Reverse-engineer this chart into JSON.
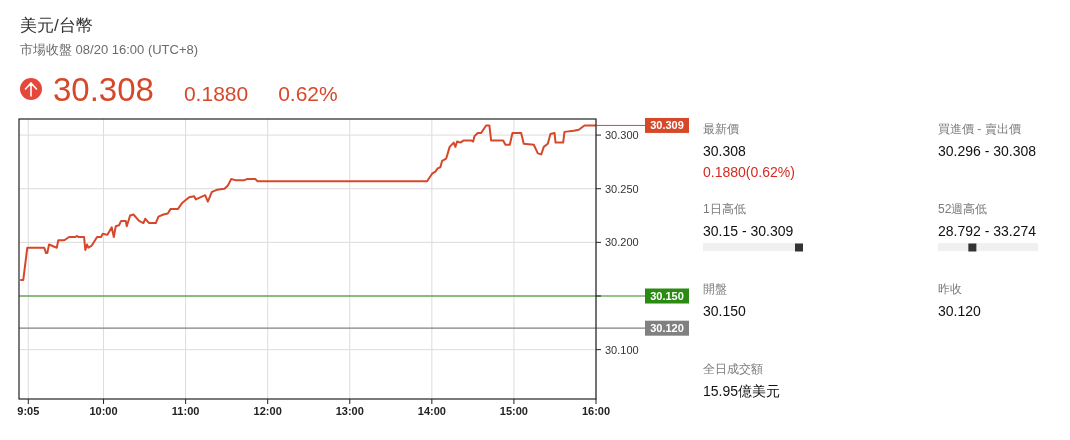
{
  "chart_data": [
    {
      "type": "line",
      "title": "美元/台幣",
      "subtitle": "市場收盤 08/20 16:00 (UTC+8)",
      "annotations": [
        "30.308",
        "0.1880",
        "0.62%",
        "30.309"
      ],
      "x": [
        8.994,
        9.022,
        9.071,
        9.278,
        9.299,
        9.315,
        9.336,
        9.43,
        9.449,
        9.522,
        9.58,
        9.653,
        9.677,
        9.693,
        9.763,
        9.778,
        9.799,
        9.815,
        9.857,
        9.921,
        9.97,
        9.991,
        10.047,
        10.1,
        10.125,
        10.149,
        10.189,
        10.214,
        10.271,
        10.283,
        10.324,
        10.364,
        10.433,
        10.486,
        10.507,
        10.555,
        10.637,
        10.669,
        10.73,
        10.783,
        10.815,
        10.905,
        10.961,
        10.994,
        11.043,
        11.104,
        11.125,
        11.238,
        11.271,
        11.32,
        11.381,
        11.474,
        11.515,
        11.555,
        11.604,
        11.717,
        11.747,
        11.848,
        11.876,
        13.942,
        14.003,
        14.043,
        14.071,
        14.104,
        14.125,
        14.174,
        14.217,
        14.266,
        14.287,
        14.308,
        14.348,
        14.388,
        14.479,
        14.503,
        14.519,
        14.559,
        14.6,
        14.661,
        14.701,
        14.722,
        14.869,
        14.897,
        14.95,
        14.982,
        15.088,
        15.12,
        15.242,
        15.291,
        15.333,
        15.364,
        15.413,
        15.445,
        15.495,
        15.507,
        15.6,
        15.616,
        15.73,
        15.79,
        15.86,
        16.0
      ],
      "series": [
        {
          "color": "#d6482a",
          "values": [
            30.165,
            30.165,
            30.195,
            30.195,
            30.19,
            30.19,
            30.198,
            30.195,
            30.202,
            30.202,
            30.205,
            30.205,
            30.206,
            30.205,
            30.205,
            30.193,
            30.198,
            30.195,
            30.197,
            30.205,
            30.205,
            30.208,
            30.207,
            30.214,
            30.205,
            30.215,
            30.216,
            30.22,
            30.22,
            30.215,
            30.225,
            30.226,
            30.22,
            30.218,
            30.222,
            30.218,
            30.218,
            30.224,
            30.226,
            30.227,
            30.231,
            30.231,
            30.237,
            30.239,
            30.242,
            30.243,
            30.24,
            30.244,
            30.238,
            30.247,
            30.249,
            30.25,
            30.253,
            30.259,
            30.258,
            30.258,
            30.259,
            30.259,
            30.257,
            30.257,
            30.264,
            30.266,
            30.269,
            30.27,
            30.276,
            30.278,
            30.289,
            30.293,
            30.289,
            30.294,
            30.293,
            30.295,
            30.295,
            30.294,
            30.299,
            30.302,
            30.302,
            30.309,
            30.309,
            30.295,
            30.295,
            30.291,
            30.291,
            30.302,
            30.302,
            30.292,
            30.291,
            30.283,
            30.282,
            30.289,
            30.292,
            30.301,
            30.302,
            30.293,
            30.293,
            30.303,
            30.304,
            30.305,
            30.309,
            30.309
          ]
        }
      ],
      "xlim": [
        8.97,
        16.0
      ],
      "xticks": [
        {
          "value": 9.0833,
          "label": "9:05"
        },
        {
          "value": 10,
          "label": "10:00"
        },
        {
          "value": 11,
          "label": "11:00"
        },
        {
          "value": 12,
          "label": "12:00"
        },
        {
          "value": 13,
          "label": "13:00"
        },
        {
          "value": 14,
          "label": "14:00"
        },
        {
          "value": 15,
          "label": "15:00"
        },
        {
          "value": 16,
          "label": "16:00"
        }
      ],
      "ylim": [
        30.054,
        30.315
      ],
      "yticks": [
        {
          "value": 30.1,
          "label": "30.100"
        },
        {
          "value": 30.15,
          "label": null
        },
        {
          "value": 30.2,
          "label": "30.200"
        },
        {
          "value": 30.25,
          "label": "30.250"
        },
        {
          "value": 30.3,
          "label": "30.300"
        }
      ],
      "grid": true,
      "ref_lines": [
        {
          "axis": "y",
          "value": 30.15,
          "label": "30.150",
          "color": "#2b8a12",
          "line_style": "solid"
        },
        {
          "axis": "y",
          "value": 30.12,
          "label": "30.120",
          "color": "#808080",
          "line_style": "solid"
        }
      ]
    },
    {
      "type": "other",
      "annotations": [
        "最新價",
        "30.308",
        "0.1880(0.62%)",
        "買進價 - 賣出價",
        "30.296 - 30.308",
        "1日高低",
        "30.15 - 30.309",
        "52週高低",
        "28.792 - 33.274",
        "開盤",
        "30.150",
        "昨收",
        "30.120",
        "全日成交額",
        "15.95億美元"
      ]
    }
  ]
}
